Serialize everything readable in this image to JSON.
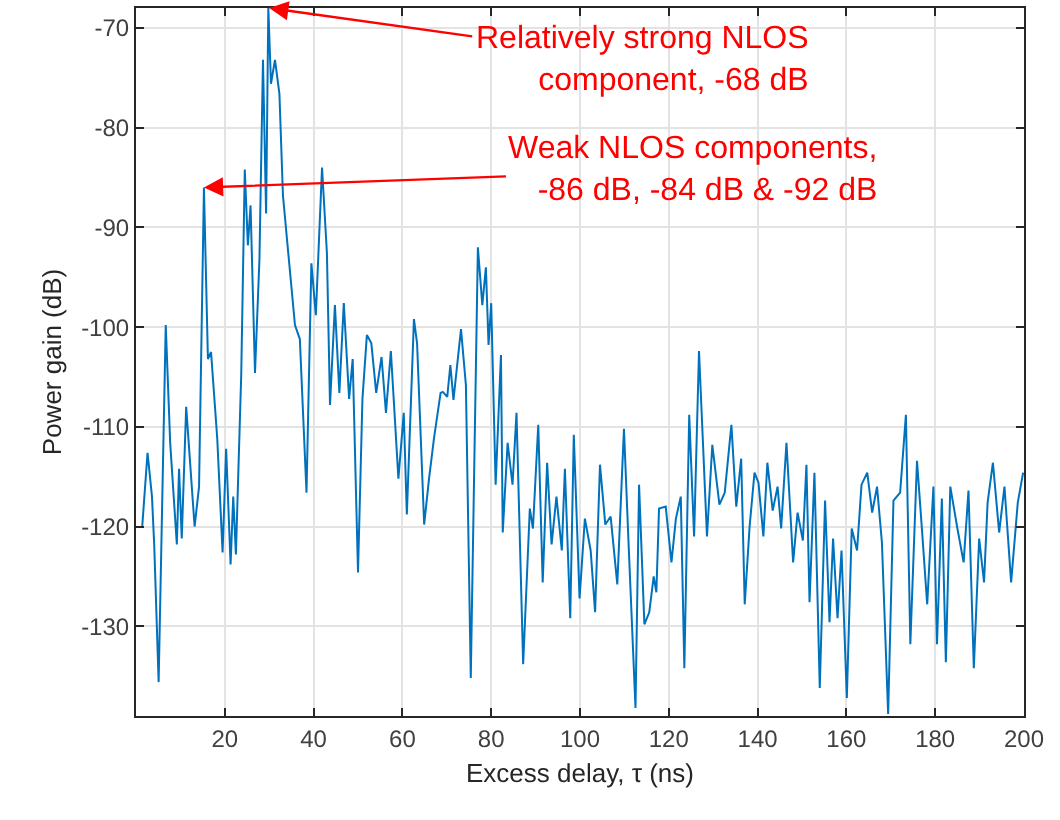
{
  "chart_data": {
    "type": "line",
    "xlabel": "Excess delay, τ (ns)",
    "ylabel": "Power gain (dB)",
    "xlim": [
      0,
      200
    ],
    "ylim": [
      -139,
      -68
    ],
    "xticks": [
      20,
      40,
      60,
      80,
      100,
      120,
      140,
      160,
      180,
      200
    ],
    "yticks": [
      -70,
      -80,
      -90,
      -100,
      -110,
      -120,
      -130
    ],
    "grid": true,
    "marker": "none",
    "line_style": "solid",
    "annotations": [
      {
        "text": "Relatively strong NLOS\ncomponent, -68 dB",
        "x": 30,
        "y": -68
      },
      {
        "text": "Weak NLOS components,\n-86 dB, -84 dB & -92 dB",
        "x": 15.3,
        "y": -86
      }
    ],
    "series": [
      {
        "color": "#0072bd",
        "x": [
          1.4,
          2.6,
          3.6,
          4.1,
          5.1,
          6.7,
          7.7,
          9.2,
          9.7,
          10.3,
          11.3,
          13.2,
          14.2,
          15.3,
          16.2,
          16.9,
          18.3,
          19.5,
          20.3,
          21.3,
          21.9,
          22.5,
          23.7,
          24.5,
          25.2,
          25.8,
          26.8,
          27.8,
          28.6,
          29.3,
          29.8,
          30.4,
          31.3,
          32.3,
          33.1,
          34.3,
          35.8,
          36.9,
          38.4,
          39.5,
          40.5,
          41.9,
          43,
          43.7,
          44.8,
          45.8,
          46.8,
          48,
          48.8,
          50,
          51,
          52,
          53,
          54.1,
          55.3,
          56.3,
          57.4,
          59.1,
          60.3,
          61,
          62.6,
          63.3,
          64.9,
          66,
          67.1,
          68.6,
          69.1,
          70.1,
          70.8,
          71.5,
          73.2,
          74.3,
          75.4,
          77,
          78,
          78.8,
          79.4,
          80,
          81,
          82.2,
          82.6,
          83.7,
          84.8,
          85.7,
          87.2,
          88.7,
          89.4,
          90.6,
          91.6,
          92.6,
          93.6,
          94.7,
          95.9,
          96.6,
          97.8,
          98.6,
          99.9,
          101.1,
          102.4,
          103.4,
          104.5,
          105.7,
          106.9,
          108.4,
          109.9,
          110.9,
          112.5,
          113.3,
          114.5,
          115.6,
          116.6,
          117.2,
          117.8,
          119.3,
          120.6,
          121.6,
          122.7,
          123.5,
          124.6,
          125.7,
          126.8,
          128.6,
          129.8,
          131.4,
          132.6,
          134.1,
          135.2,
          136.3,
          137.1,
          138.2,
          139.3,
          140.2,
          141.3,
          142.2,
          143.4,
          144.5,
          145.3,
          146.5,
          148,
          149,
          150.2,
          151,
          151.7,
          152.8,
          154,
          155.2,
          156.2,
          157,
          158,
          158.9,
          160.1,
          161.2,
          162.4,
          163.4,
          164.7,
          165.8,
          166.9,
          168,
          169.4,
          170.6,
          172.1,
          173.4,
          174.4,
          175.9,
          177,
          178.2,
          179.6,
          180.4,
          181.5,
          182.4,
          183.4,
          185,
          186.4,
          187.5,
          188.7,
          189.9,
          191,
          191.8,
          193,
          194.4,
          195.6,
          197.1,
          198.6,
          199.8
        ],
        "values": [
          -120,
          -112.6,
          -117,
          -121.8,
          -135.6,
          -99.8,
          -111.6,
          -121.8,
          -114.2,
          -121.2,
          -108,
          -120,
          -116,
          -86,
          -103.2,
          -102.5,
          -111.2,
          -122.6,
          -112.2,
          -123.8,
          -117,
          -122.8,
          -104.8,
          -84.2,
          -91.8,
          -87.8,
          -104.6,
          -93.2,
          -73.2,
          -88.6,
          -68,
          -75.6,
          -73.2,
          -76.6,
          -86.8,
          -92.6,
          -99.8,
          -101.2,
          -116.6,
          -93.6,
          -98.8,
          -84,
          -92.6,
          -107.8,
          -97.8,
          -106.6,
          -97.6,
          -107.2,
          -103.2,
          -124.6,
          -107.2,
          -100.8,
          -101.6,
          -106.6,
          -103,
          -108.6,
          -102.4,
          -115.2,
          -108.6,
          -118.8,
          -99.2,
          -101.6,
          -119.8,
          -115.2,
          -111.2,
          -106.6,
          -106.5,
          -107,
          -103.8,
          -107.3,
          -100.2,
          -105.8,
          -135.2,
          -92,
          -97.8,
          -94,
          -101.8,
          -97.6,
          -115.8,
          -102.8,
          -120.6,
          -111.6,
          -115.8,
          -108.6,
          -133.8,
          -118.2,
          -120.2,
          -109.8,
          -125.6,
          -113.6,
          -121.8,
          -117,
          -122.4,
          -114.2,
          -129.2,
          -110.8,
          -127.2,
          -119.2,
          -122.4,
          -128.6,
          -113.8,
          -119.8,
          -119,
          -125.8,
          -110.2,
          -121.3,
          -138.2,
          -115.8,
          -129.8,
          -128.6,
          -125,
          -126.6,
          -118.2,
          -118,
          -123.6,
          -119.2,
          -117,
          -134.2,
          -108.8,
          -121,
          -102.4,
          -121,
          -111.8,
          -117.8,
          -116.6,
          -109.8,
          -118,
          -113.2,
          -127.8,
          -120,
          -114.6,
          -115.6,
          -121,
          -113.6,
          -118.4,
          -116,
          -120.2,
          -111.6,
          -123.6,
          -118.6,
          -121.4,
          -113.8,
          -127.6,
          -114.6,
          -136.2,
          -117.4,
          -129.6,
          -121.2,
          -129.2,
          -122.4,
          -137.2,
          -120.2,
          -122.4,
          -115.8,
          -114.6,
          -118.6,
          -116,
          -121.6,
          -138.8,
          -117.4,
          -116.6,
          -108.8,
          -131.8,
          -113.4,
          -120.2,
          -127.8,
          -116,
          -131.8,
          -117.2,
          -133.6,
          -116,
          -120.2,
          -123.6,
          -116.4,
          -134.2,
          -121.2,
          -125.6,
          -117.6,
          -113.6,
          -120.6,
          -116,
          -125.6,
          -117.6,
          -114.6
        ]
      }
    ]
  }
}
